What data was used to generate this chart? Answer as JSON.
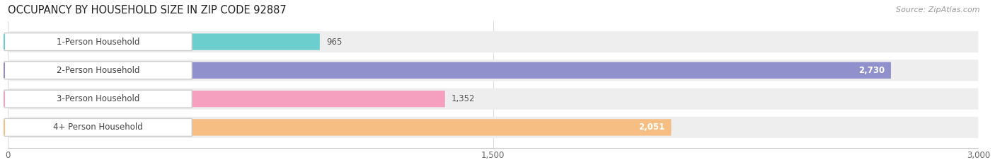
{
  "title": "OCCUPANCY BY HOUSEHOLD SIZE IN ZIP CODE 92887",
  "source": "Source: ZipAtlas.com",
  "categories": [
    "1-Person Household",
    "2-Person Household",
    "3-Person Household",
    "4+ Person Household"
  ],
  "values": [
    965,
    2730,
    1352,
    2051
  ],
  "bar_colors": [
    "#6dcece",
    "#9090cc",
    "#f5a0bf",
    "#f6be82"
  ],
  "track_color": "#eeeeee",
  "xlim": [
    0,
    3000
  ],
  "xticks": [
    0,
    1500,
    3000
  ],
  "background_color": "#ffffff",
  "title_fontsize": 10.5,
  "label_fontsize": 8.5,
  "value_fontsize": 8.5,
  "source_fontsize": 8
}
